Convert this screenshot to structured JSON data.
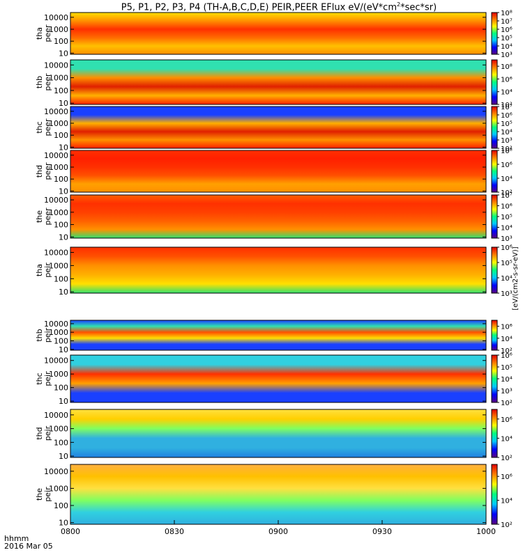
{
  "title": {
    "prefix": "P5, P1, P2, P3, P4 (TH-A,B,C,D,E) PEIR,PEER EFlux eV/(eV*cm",
    "sup": "2",
    "suffix": "*sec*sr)"
  },
  "time_axis": {
    "label": "hhmm",
    "date": "2016 Mar 05",
    "ticks": [
      "0800",
      "0830",
      "0900",
      "0930",
      "1000"
    ]
  },
  "colorbar_unit": "[eV/(cm2-s-sr-eV)]",
  "chart_data": {
    "type": "heatmap",
    "x_range": [
      "0800",
      "1000"
    ],
    "y_scale": "log",
    "color_scale": "log",
    "colormap": [
      "#5a0080",
      "#0000ff",
      "#00c8ff",
      "#00ff80",
      "#ffff00",
      "#ff8000",
      "#e00000"
    ],
    "panels": [
      {
        "probe": "tha",
        "species": "peer",
        "y_ticks": [
          "10",
          "100",
          "1000",
          "10000"
        ],
        "ylim": [
          8,
          25000
        ],
        "cbar_ticks": [
          "10³",
          "10⁴",
          "10⁵",
          "10⁶",
          "10⁷",
          "10⁸"
        ],
        "cbar_range": [
          3,
          8
        ],
        "dominant_colors": [
          "#ff6a00",
          "#ffe000"
        ]
      },
      {
        "probe": "thb",
        "species": "peer",
        "y_ticks": [
          "10",
          "100",
          "1000",
          "10000"
        ],
        "ylim": [
          8,
          25000
        ],
        "cbar_ticks": [
          "10²",
          "10⁴",
          "10⁶",
          "10⁸"
        ],
        "cbar_range": [
          2,
          9
        ],
        "dominant_colors": [
          "#30e0b0",
          "#e02000"
        ]
      },
      {
        "probe": "thc",
        "species": "peer",
        "y_ticks": [
          "10",
          "100",
          "1000",
          "10000"
        ],
        "ylim": [
          8,
          25000
        ],
        "cbar_ticks": [
          "10²",
          "10³",
          "10⁴",
          "10⁵",
          "10⁶",
          "10⁷"
        ],
        "cbar_range": [
          2,
          7
        ],
        "dominant_colors": [
          "#1a40ff",
          "#e02000"
        ]
      },
      {
        "probe": "thd",
        "species": "peer",
        "y_ticks": [
          "10",
          "100",
          "1000",
          "10000"
        ],
        "ylim": [
          8,
          25000
        ],
        "cbar_ticks": [
          "10²",
          "10⁴",
          "10⁶",
          "10⁸"
        ],
        "cbar_range": [
          2,
          8
        ],
        "dominant_colors": [
          "#ff3000",
          "#ff9000"
        ]
      },
      {
        "probe": "the",
        "species": "peer",
        "y_ticks": [
          "10",
          "100",
          "1000",
          "10000"
        ],
        "ylim": [
          8,
          25000
        ],
        "cbar_ticks": [
          "10³",
          "10⁴",
          "10⁵",
          "10⁶",
          "10⁷"
        ],
        "cbar_range": [
          3,
          7
        ],
        "dominant_colors": [
          "#ff3000",
          "#ff9000"
        ]
      },
      {
        "probe": "tha",
        "species": "peir",
        "y_ticks": [
          "10",
          "100",
          "1000",
          "10000"
        ],
        "ylim": [
          8,
          25000
        ],
        "cbar_ticks": [
          "10³",
          "10⁴",
          "10⁵",
          "10⁶"
        ],
        "cbar_range": [
          3,
          6
        ],
        "dominant_colors": [
          "#ff4000",
          "#30e070"
        ]
      },
      {
        "probe": "thb",
        "species": "peir",
        "y_ticks": [
          "10",
          "100",
          "1000",
          "10000"
        ],
        "ylim": [
          8,
          25000
        ],
        "cbar_ticks": [
          "10²",
          "10⁴",
          "10⁶"
        ],
        "cbar_range": [
          2,
          7
        ],
        "dominant_colors": [
          "#1a40ff",
          "#ff5000"
        ]
      },
      {
        "probe": "thc",
        "species": "peir",
        "y_ticks": [
          "10",
          "100",
          "1000",
          "10000"
        ],
        "ylim": [
          8,
          25000
        ],
        "cbar_ticks": [
          "10²",
          "10³",
          "10⁴",
          "10⁵",
          "10⁶"
        ],
        "cbar_range": [
          2,
          6
        ],
        "dominant_colors": [
          "#30d0e0",
          "#ff3000"
        ]
      },
      {
        "probe": "thd",
        "species": "peir",
        "y_ticks": [
          "10",
          "100",
          "1000",
          "10000"
        ],
        "ylim": [
          8,
          25000
        ],
        "cbar_ticks": [
          "10²",
          "10⁴",
          "10⁶"
        ],
        "cbar_range": [
          2,
          7
        ],
        "dominant_colors": [
          "#ffe040",
          "#30b0e0"
        ]
      },
      {
        "probe": "the",
        "species": "peir",
        "y_ticks": [
          "10",
          "100",
          "1000",
          "10000"
        ],
        "ylim": [
          8,
          25000
        ],
        "cbar_ticks": [
          "10²",
          "10⁴",
          "10⁶"
        ],
        "cbar_range": [
          2,
          7
        ],
        "dominant_colors": [
          "#ffb040",
          "#80ff60"
        ]
      }
    ]
  }
}
